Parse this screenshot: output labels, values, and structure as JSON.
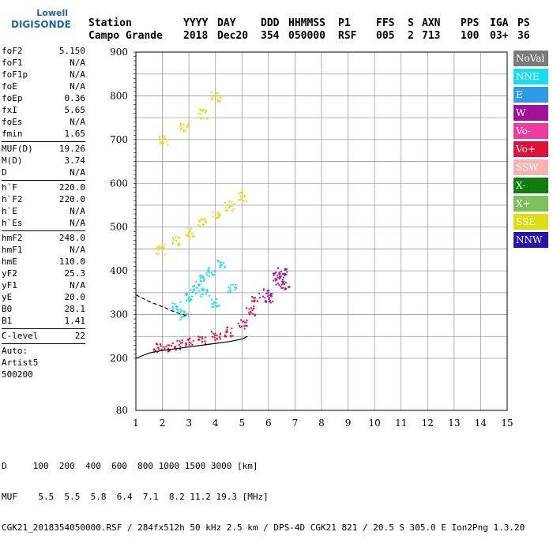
{
  "logo": {
    "line1": "Lowell",
    "line2": "DIGISONDE"
  },
  "header": {
    "cols": [
      {
        "label": "Station",
        "value": "Campo Grande"
      },
      {
        "label": "YYYY",
        "value": "2018"
      },
      {
        "label": "DAY",
        "value": "Dec20"
      },
      {
        "label": "DDD",
        "value": "354"
      },
      {
        "label": "HHMMSS",
        "value": "050000"
      },
      {
        "label": "P1",
        "value": "RSF"
      },
      {
        "label": "FFS",
        "value": "005"
      },
      {
        "label": "S",
        "value": "2"
      },
      {
        "label": "AXN",
        "value": "713"
      },
      {
        "label": "PPS",
        "value": "100"
      },
      {
        "label": "IGA",
        "value": "03+"
      },
      {
        "label": "PS",
        "value": "36"
      }
    ]
  },
  "params": {
    "group1": [
      {
        "key": "foF2",
        "value": "5.150"
      },
      {
        "key": "foF1",
        "value": "N/A"
      },
      {
        "key": "foF1p",
        "value": "N/A"
      },
      {
        "key": "foE",
        "value": "N/A"
      },
      {
        "key": "foEp",
        "value": "0.36"
      },
      {
        "key": "fxI",
        "value": "5.65"
      },
      {
        "key": "foEs",
        "value": "N/A"
      },
      {
        "key": "fmin",
        "value": "1.65"
      }
    ],
    "group2": [
      {
        "key": "MUF(D)",
        "value": "19.26"
      },
      {
        "key": "M(D)",
        "value": "3.74"
      },
      {
        "key": "D",
        "value": "N/A"
      }
    ],
    "group3": [
      {
        "key": "h`F",
        "value": "220.0"
      },
      {
        "key": "h`F2",
        "value": "220.0"
      },
      {
        "key": "h`E",
        "value": "N/A"
      },
      {
        "key": "h`Es",
        "value": "N/A"
      }
    ],
    "group4": [
      {
        "key": "hmF2",
        "value": "248.0"
      },
      {
        "key": "hmF1",
        "value": "N/A"
      },
      {
        "key": "hmE",
        "value": "110.0"
      },
      {
        "key": "yF2",
        "value": "25.3"
      },
      {
        "key": "yF1",
        "value": "N/A"
      },
      {
        "key": "yE",
        "value": "20.0"
      },
      {
        "key": "B0",
        "value": "28.1"
      },
      {
        "key": "B1",
        "value": "1.41"
      }
    ],
    "group5": [
      {
        "key": "C-level",
        "value": "22"
      }
    ],
    "group6": [
      "Auto:",
      "Artist5",
      "500200"
    ]
  },
  "legend": [
    {
      "label": "NoVal",
      "color": "#7a7a7a"
    },
    {
      "label": "NNE",
      "color": "#18dcf0"
    },
    {
      "label": "E",
      "color": "#2f9be6"
    },
    {
      "label": "W",
      "color": "#a0109a"
    },
    {
      "label": "Vo-",
      "color": "#ee3c9e"
    },
    {
      "label": "Vo+",
      "color": "#e0103c"
    },
    {
      "label": "SSW",
      "color": "#f7b2b2"
    },
    {
      "label": "X-",
      "color": "#0f7d12"
    },
    {
      "label": "X+",
      "color": "#7ec05a"
    },
    {
      "label": "SSE",
      "color": "#dede10"
    },
    {
      "label": "NNW",
      "color": "#2812a8"
    }
  ],
  "chart_data": {
    "type": "scatter",
    "xlim": [
      1,
      15
    ],
    "ylim": [
      80,
      900
    ],
    "x_ticks": [
      "1",
      "2",
      "3",
      "4",
      "5",
      "6",
      "7",
      "8",
      "9",
      "10",
      "11",
      "12",
      "13",
      "14",
      "15"
    ],
    "y_ticks": [
      "80",
      "200",
      "300",
      "400",
      "500",
      "600",
      "700",
      "800",
      "900"
    ],
    "grid": true,
    "series": [
      {
        "name": "NNE",
        "points": [
          [
            2.5,
            320
          ],
          [
            3.0,
            340
          ],
          [
            3.2,
            360
          ],
          [
            3.6,
            350
          ],
          [
            4.0,
            330
          ],
          [
            2.8,
            300
          ],
          [
            3.4,
            380
          ],
          [
            3.8,
            400
          ],
          [
            4.2,
            420
          ],
          [
            4.6,
            360
          ]
        ]
      },
      {
        "name": "Vo+",
        "points": [
          [
            1.8,
            225
          ],
          [
            2.2,
            228
          ],
          [
            2.6,
            232
          ],
          [
            3.0,
            238
          ],
          [
            3.5,
            245
          ],
          [
            4.0,
            252
          ],
          [
            4.5,
            262
          ],
          [
            5.0,
            280
          ],
          [
            5.3,
            310
          ],
          [
            5.5,
            340
          ]
        ]
      },
      {
        "name": "SSE",
        "points": [
          [
            1.9,
            450
          ],
          [
            2.5,
            470
          ],
          [
            3.0,
            490
          ],
          [
            3.5,
            510
          ],
          [
            4.0,
            530
          ],
          [
            4.5,
            550
          ],
          [
            5.0,
            570
          ],
          [
            2.0,
            700
          ],
          [
            2.8,
            730
          ],
          [
            3.5,
            760
          ],
          [
            4.0,
            800
          ]
        ]
      },
      {
        "name": "W",
        "points": [
          [
            6.3,
            390
          ],
          [
            6.4,
            380
          ],
          [
            6.5,
            400
          ],
          [
            6.6,
            370
          ],
          [
            5.9,
            350
          ],
          [
            6.0,
            340
          ]
        ]
      }
    ],
    "curves": [
      {
        "name": "profile",
        "style": "solid",
        "points": [
          [
            1.0,
            200
          ],
          [
            1.5,
            212
          ],
          [
            2.0,
            218
          ],
          [
            2.5,
            222
          ],
          [
            3.0,
            226
          ],
          [
            3.5,
            230
          ],
          [
            4.0,
            234
          ],
          [
            4.5,
            238
          ],
          [
            5.0,
            244
          ],
          [
            5.2,
            250
          ]
        ]
      },
      {
        "name": "trace",
        "style": "dashed",
        "points": [
          [
            1.0,
            345
          ],
          [
            1.5,
            330
          ],
          [
            2.0,
            318
          ],
          [
            2.5,
            305
          ],
          [
            3.0,
            296
          ]
        ]
      }
    ]
  },
  "footer": {
    "row1": "D     100  200  400  600  800 1000 1500 3000 [km]",
    "row2": "MUF    5.5  5.5  5.8  6.4  7.1  8.2 11.2 19.3 [MHz]",
    "row3": "CGK21_2018354050000.RSF / 284fx512h 50 kHz 2.5 km / DPS-4D CGK21 821 / 20.5 S 305.0 E Ion2Png 1.3.20"
  }
}
